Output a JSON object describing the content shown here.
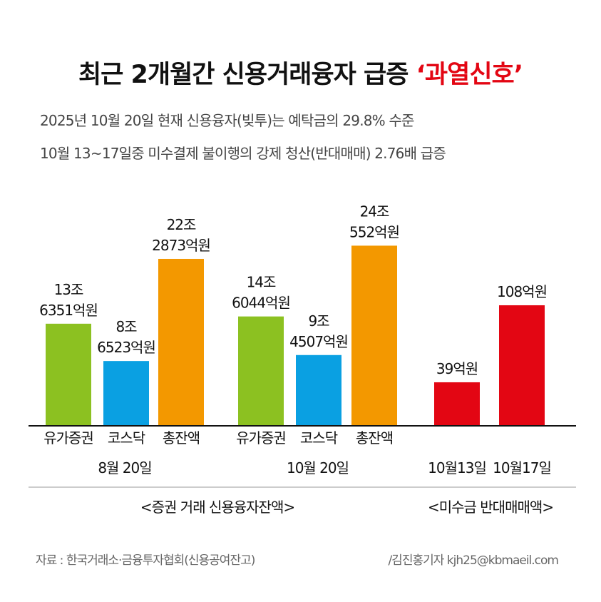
{
  "title": {
    "main": "최근 2개월간 신용거래융자 급증 ",
    "highlight": "‘과열신호’"
  },
  "subtitle": [
    "2025년 10월 20일 현재 신용융자(빚투)는 예탁금의 29.8% 수준",
    "10월 13~17일중 미수결제 불이행의 강제 청산(반대매매) 2.76배 급증"
  ],
  "colors": {
    "유가증권": "#8cc121",
    "코스닥": "#0aa0e2",
    "총잔액": "#f39800",
    "반대매매": "#e30613"
  },
  "chart_data": [
    {
      "type": "bar",
      "title": "<증권 거래 신용융자잔액>",
      "unit": "억원",
      "groups": [
        {
          "label": "8월 20일",
          "bars": [
            {
              "category": "유가증권",
              "value": 136351,
              "label": [
                "13조",
                "6351억원"
              ]
            },
            {
              "category": "코스닥",
              "value": 86523,
              "label": [
                "8조",
                "6523억원"
              ]
            },
            {
              "category": "총잔액",
              "value": 222873,
              "label": [
                "22조",
                "2873억원"
              ]
            }
          ]
        },
        {
          "label": "10월 20일",
          "bars": [
            {
              "category": "유가증권",
              "value": 146044,
              "label": [
                "14조",
                "6044억원"
              ]
            },
            {
              "category": "코스닥",
              "value": 94507,
              "label": [
                "9조",
                "4507억원"
              ]
            },
            {
              "category": "총잔액",
              "value": 240552,
              "label": [
                "24조",
                "552억원"
              ]
            }
          ]
        }
      ]
    },
    {
      "type": "bar",
      "title": "<미수금 반대매매액>",
      "unit": "억원",
      "groups": [
        {
          "label": "",
          "bars": [
            {
              "category": "10월13일",
              "value": 39,
              "label": [
                "39억원"
              ]
            },
            {
              "category": "10월17일",
              "value": 108,
              "label": [
                "108억원"
              ]
            }
          ]
        }
      ]
    }
  ],
  "footer": {
    "source": "자료 : 한국거래소·금융투자협회(신용공여잔고)",
    "byline": "/김진홍기자 kjh25@kbmaeil.com"
  }
}
